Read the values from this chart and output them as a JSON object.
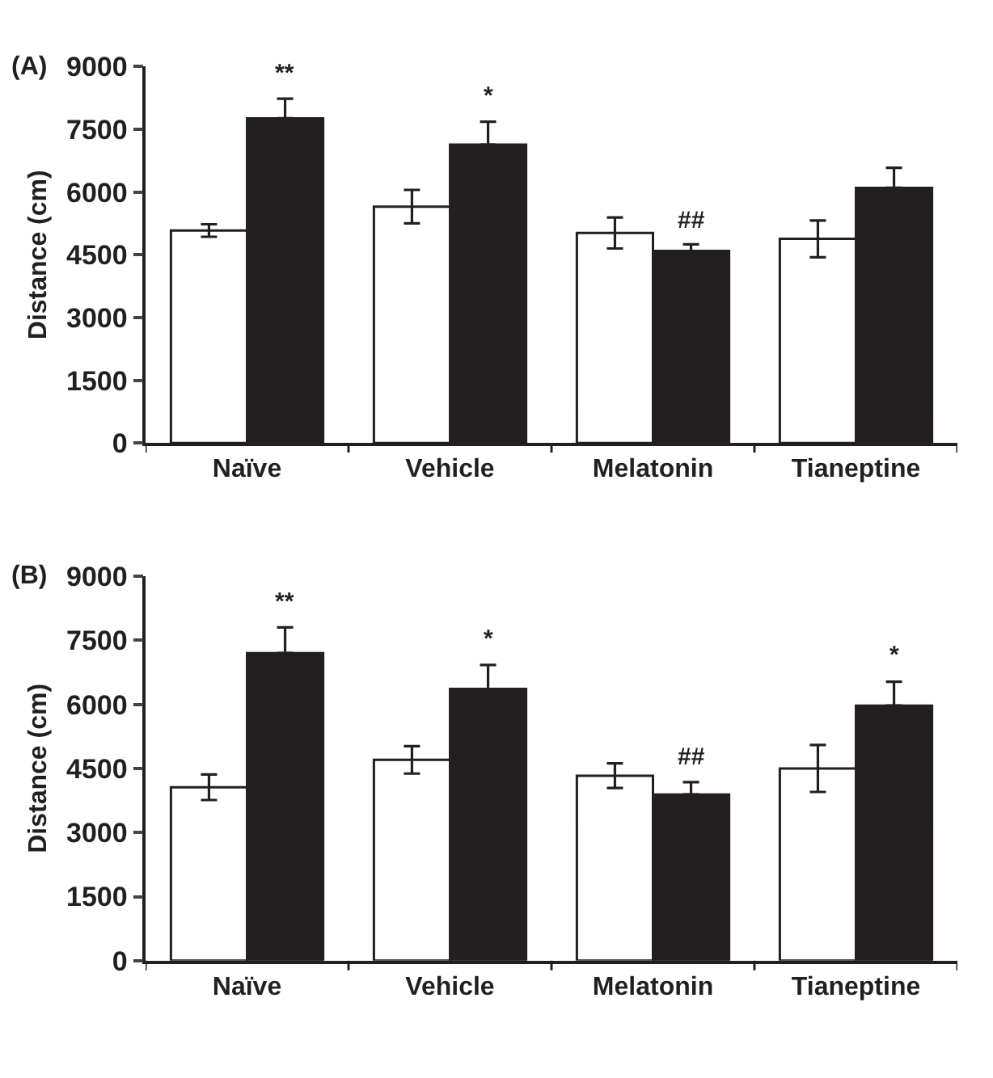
{
  "chart_data": [
    {
      "type": "bar",
      "title": "(A)",
      "ylabel": "Distance (cm)",
      "categories": [
        "Naïve",
        "Vehicle",
        "Melatonin",
        "Tianeptine"
      ],
      "ylim": [
        0,
        9000
      ],
      "yticks": [
        0,
        1500,
        3000,
        4500,
        6000,
        7500,
        9000
      ],
      "series": [
        {
          "color": "#ffffff",
          "values": [
            5080,
            5650,
            5020,
            4880
          ],
          "errors": [
            150,
            400,
            370,
            440
          ]
        },
        {
          "color": "#231f20",
          "values": [
            7760,
            7130,
            4590,
            6100
          ],
          "errors": [
            [
              7760,
              8230
            ],
            [
              7130,
              7680
            ],
            [
              4590,
              4750
            ],
            [
              6100,
              6580
            ]
          ]
        }
      ],
      "annotations": [
        {
          "text": "**",
          "x": "Naïve",
          "y": 7760
        },
        {
          "text": "*",
          "x": "Vehicle",
          "y": 7130
        },
        {
          "text": "##",
          "x": "Melatonin",
          "y": 4590
        }
      ]
    },
    {
      "type": "bar",
      "title": "(B)",
      "ylabel": "Distance (cm)",
      "categories": [
        "Naïve",
        "Vehicle",
        "Melatonin",
        "Tianeptine"
      ],
      "ylim": [
        0,
        9000
      ],
      "yticks": [
        0,
        1500,
        3000,
        4500,
        6000,
        7500,
        9000
      ],
      "series": [
        {
          "color": "#ffffff",
          "values": [
            4060,
            4700,
            4330,
            4500
          ],
          "errors": [
            300,
            320,
            290,
            550
          ]
        },
        {
          "color": "#231f20",
          "values": [
            7200,
            6360,
            3890,
            5970
          ],
          "errors": [
            [
              7200,
              7800
            ],
            [
              6360,
              6920
            ],
            [
              3890,
              4180
            ],
            [
              5970,
              6530
            ]
          ]
        }
      ],
      "annotations": [
        {
          "text": "**",
          "x": "Naïve",
          "y": 7200
        },
        {
          "text": "*",
          "x": "Vehicle",
          "y": 6360
        },
        {
          "text": "##",
          "x": "Melatonin",
          "y": 3890
        },
        {
          "text": "*",
          "x": "Tianeptine",
          "y": 5970
        }
      ]
    }
  ]
}
